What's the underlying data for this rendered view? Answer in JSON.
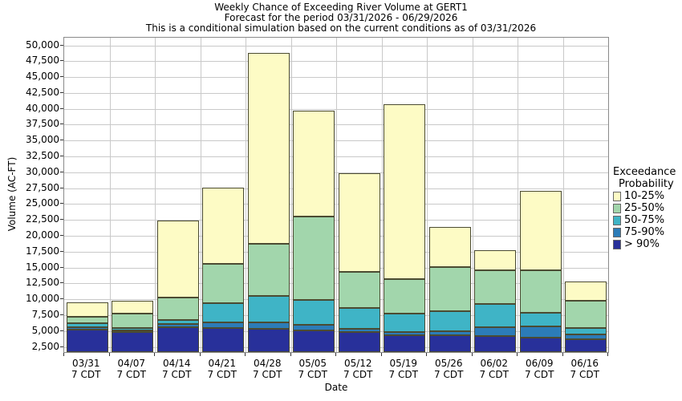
{
  "title": {
    "line1": "Weekly Chance of Exceeding River Volume at GERT1",
    "line2": "Forecast for the period 03/31/2026 - 06/29/2026",
    "line3": "This is a conditional simulation based on the current conditions as of 03/31/2026"
  },
  "axes": {
    "x_label": "Date",
    "y_label": "Volume (AC-FT)"
  },
  "legend": {
    "title_line1": "Exceedance",
    "title_line2": "Probability",
    "items": [
      {
        "label": "10-25%",
        "color": "#fdfbc5"
      },
      {
        "label": "25-50%",
        "color": "#a2d6ac"
      },
      {
        "label": "50-75%",
        "color": "#3fb4c6"
      },
      {
        "label": "75-90%",
        "color": "#2c7cb8"
      },
      {
        "label": "> 90%",
        "color": "#28309a"
      }
    ]
  },
  "chart_data": {
    "type": "bar",
    "stacked": true,
    "grid": true,
    "title": "Weekly Chance of Exceeding River Volume at GERT1",
    "xlabel": "Date",
    "ylabel": "Volume (AC-FT)",
    "y_axis": {
      "min": 1700,
      "max": 51200,
      "tick_start": 2500,
      "tick_step": 2500,
      "tick_end": 50000
    },
    "categories": [
      {
        "label": "03/31",
        "sub": "7 CDT"
      },
      {
        "label": "04/07",
        "sub": "7 CDT"
      },
      {
        "label": "04/14",
        "sub": "7 CDT"
      },
      {
        "label": "04/21",
        "sub": "7 CDT"
      },
      {
        "label": "04/28",
        "sub": "7 CDT"
      },
      {
        "label": "05/05",
        "sub": "7 CDT"
      },
      {
        "label": "05/12",
        "sub": "7 CDT"
      },
      {
        "label": "05/19",
        "sub": "7 CDT"
      },
      {
        "label": "05/26",
        "sub": "7 CDT"
      },
      {
        "label": "06/02",
        "sub": "7 CDT"
      },
      {
        "label": "06/09",
        "sub": "7 CDT"
      },
      {
        "label": "06/16",
        "sub": "7 CDT"
      }
    ],
    "series_note": "cumulative_top values in AC-FT; segments stack bottom-to-top from y_axis.min",
    "series": [
      {
        "name": "> 90%",
        "color": "#28309a",
        "cumulative_top": [
          5280,
          4900,
          5650,
          5500,
          5300,
          5100,
          4800,
          4300,
          4400,
          4270,
          4000,
          3700
        ]
      },
      {
        "name": "75-90%",
        "color": "#2c7cb8",
        "cumulative_top": [
          5620,
          5150,
          6150,
          6400,
          6400,
          6000,
          5400,
          4850,
          4950,
          5600,
          5750,
          4500
        ]
      },
      {
        "name": "50-75%",
        "color": "#3fb4c6",
        "cumulative_top": [
          6250,
          5500,
          6800,
          9350,
          10600,
          9900,
          8650,
          7700,
          8200,
          9300,
          7900,
          5500
        ]
      },
      {
        "name": "25-50%",
        "color": "#a2d6ac",
        "cumulative_top": [
          7300,
          7750,
          10300,
          15600,
          18750,
          23000,
          14300,
          13150,
          15100,
          14600,
          14600,
          9800
        ]
      },
      {
        "name": "10-25%",
        "color": "#fdfbc5",
        "cumulative_top": [
          9550,
          9800,
          22400,
          27600,
          48750,
          39650,
          29800,
          40700,
          21400,
          17750,
          27100,
          12850
        ]
      }
    ]
  },
  "colors": {
    "bar_edge": "#4b4b32",
    "gridline": "#c9c9c9",
    "plot_border": "#8a8a8a",
    "tick": "#333333"
  }
}
